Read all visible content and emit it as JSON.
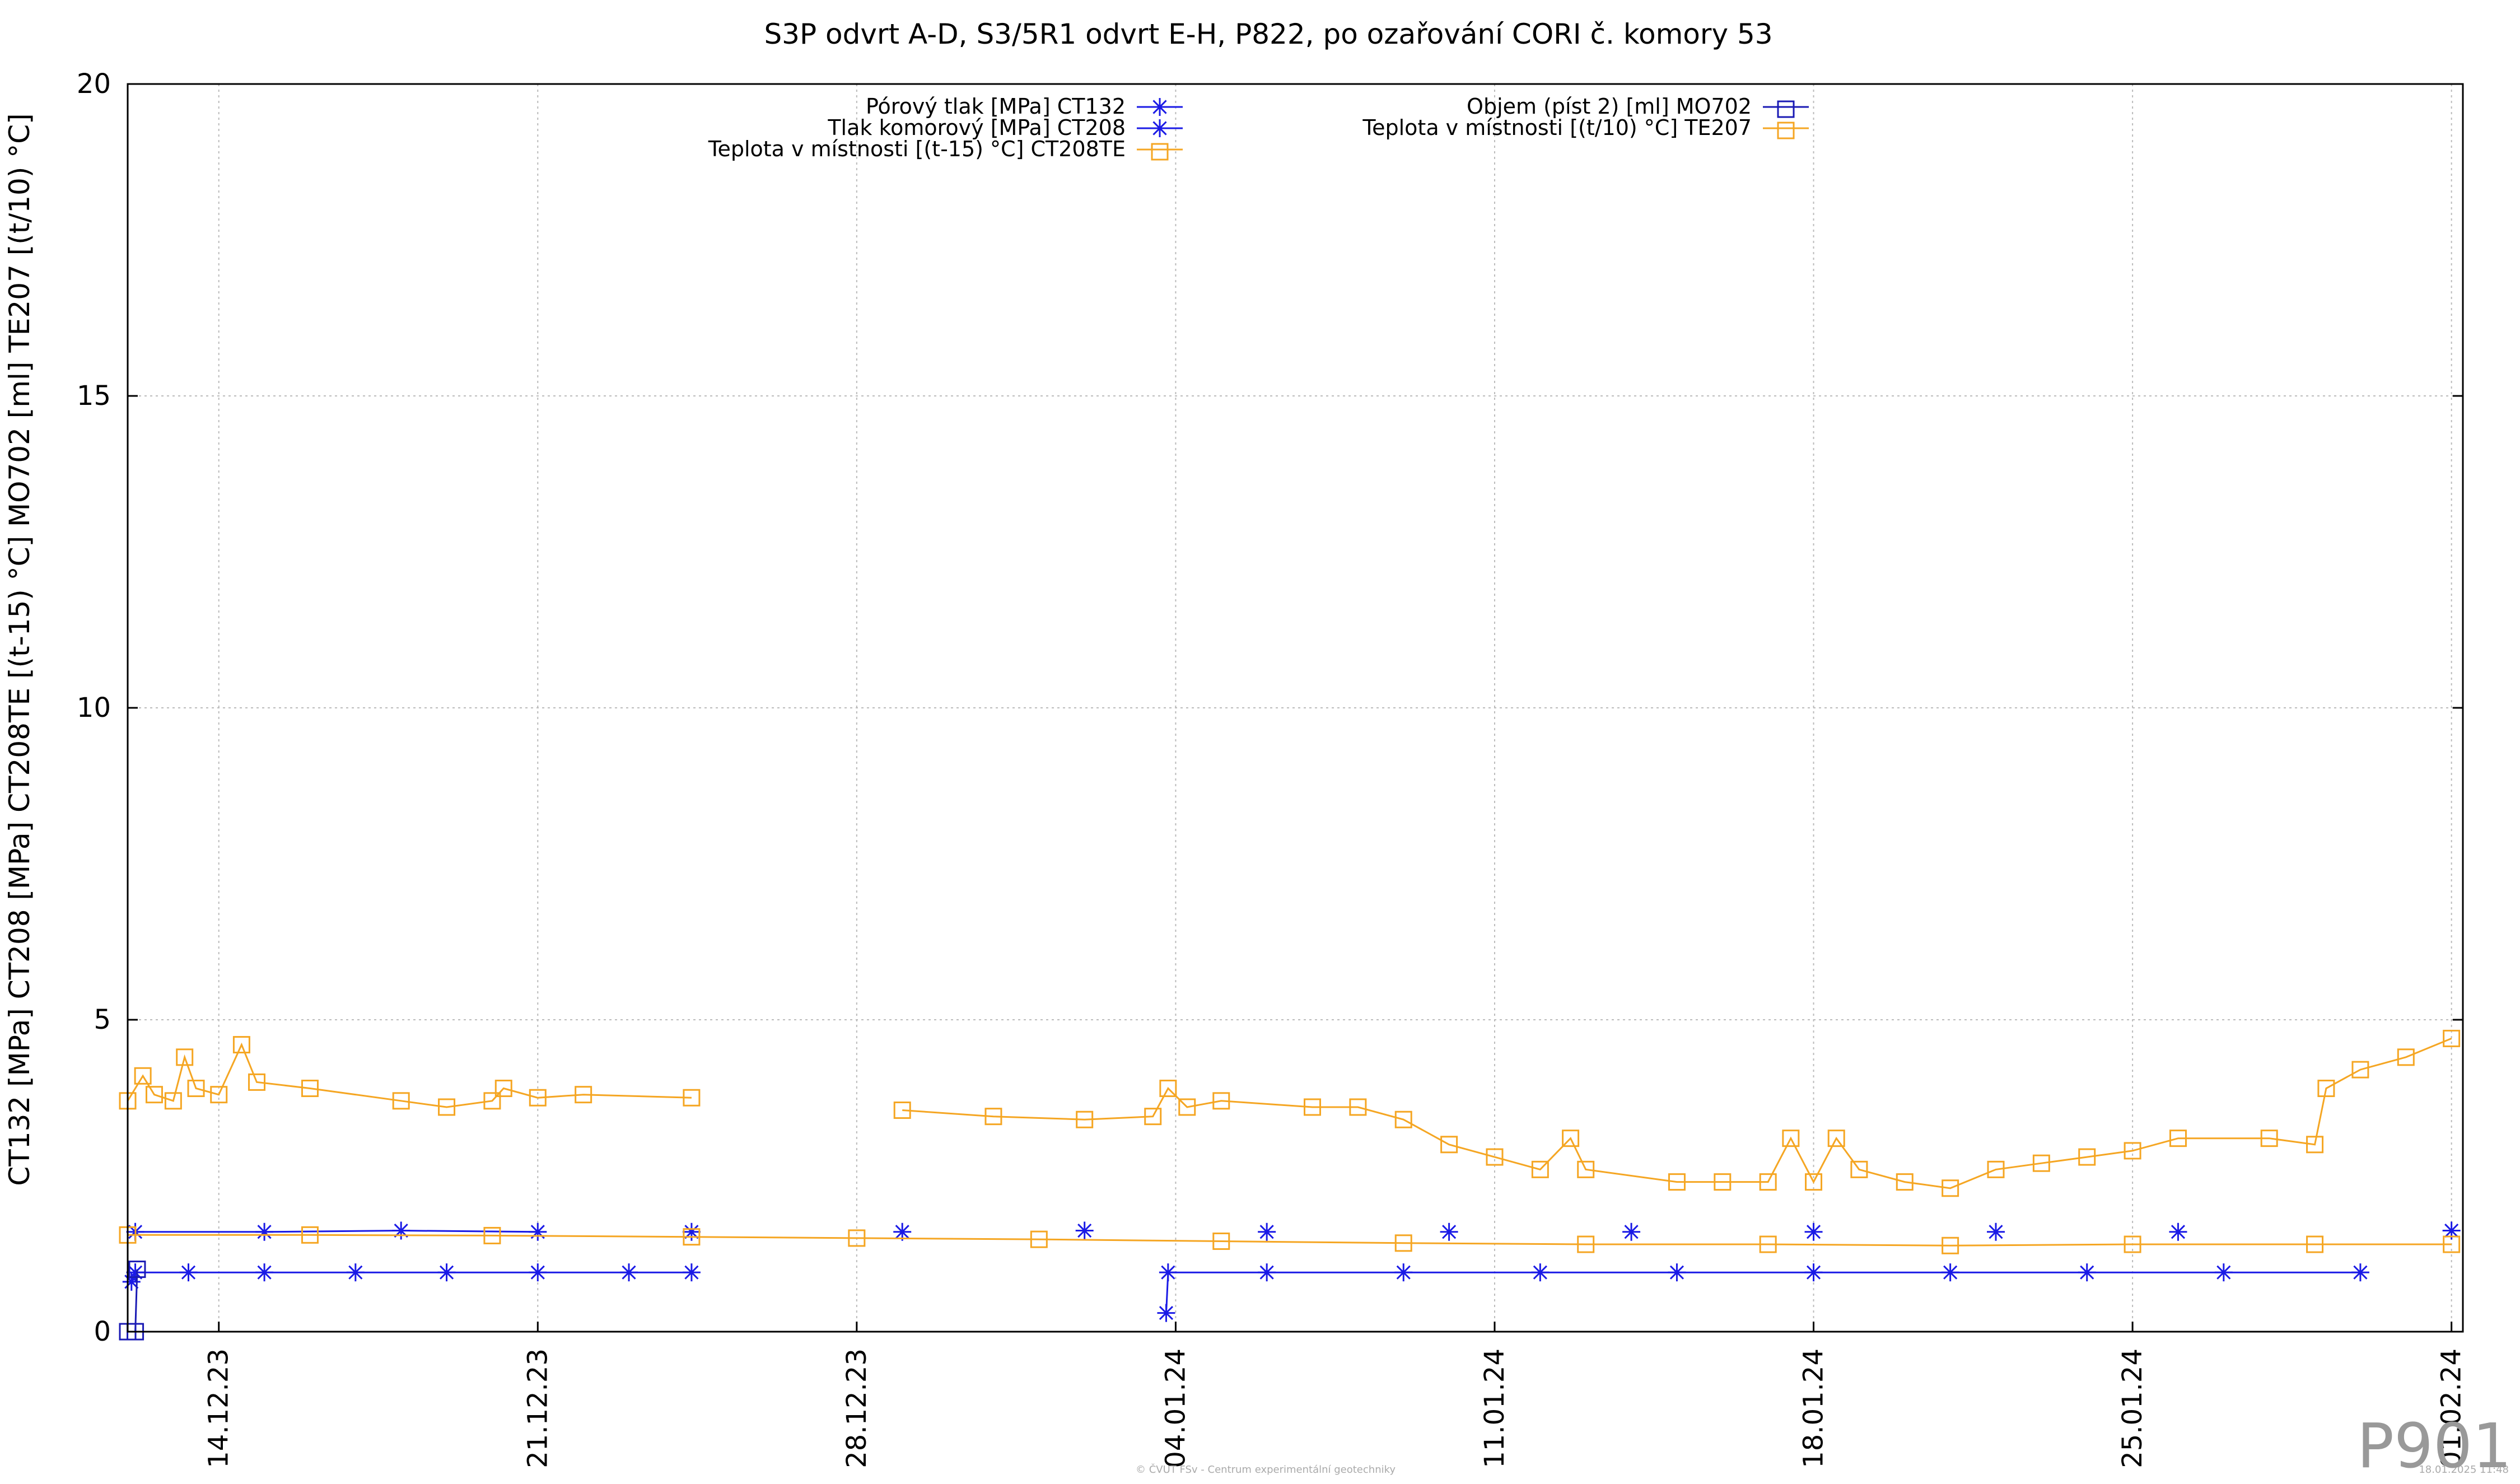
{
  "chart_data": {
    "type": "line",
    "title": "S3P odvrt A-D, S3/5R1 odvrt E-H, P822, po ozařování CORI č. komory 53",
    "ylabel": "CT132 [MPa] CT208 [MPa] CT208TE [(t-15) °C] MO702 [ml] TE207 [(t/10) °C]",
    "xlabel": "",
    "ylim": [
      0,
      20
    ],
    "yticks": [
      0,
      5,
      10,
      15,
      20
    ],
    "xrange": [
      "2023-12-12",
      "2024-02-01"
    ],
    "xticks": [
      {
        "date": "2023-12-14",
        "label": "14.12.23"
      },
      {
        "date": "2023-12-21",
        "label": "21.12.23"
      },
      {
        "date": "2023-12-28",
        "label": "28.12.23"
      },
      {
        "date": "2024-01-04",
        "label": "04.01.24"
      },
      {
        "date": "2024-01-11",
        "label": "11.01.24"
      },
      {
        "date": "2024-01-18",
        "label": "18.01.24"
      },
      {
        "date": "2024-01-25",
        "label": "25.01.24"
      },
      {
        "date": "2024-02-01",
        "label": "01.02.24"
      }
    ],
    "grid": true,
    "legend_position": "top",
    "series": [
      {
        "name": "Pórový tlak [MPa] CT132",
        "color": "#1a1ae6",
        "marker": "asterisk",
        "points": [
          [
            "2023-12-12T02:00",
            0.8
          ],
          [
            "2023-12-12T04:00",
            0.95
          ],
          [
            "2023-12-13T08:00",
            0.95
          ],
          [
            "2023-12-15T00:00",
            0.95
          ],
          [
            "2023-12-17T00:00",
            0.95
          ],
          [
            "2023-12-19T00:00",
            0.95
          ],
          [
            "2023-12-21T00:00",
            0.95
          ],
          [
            "2023-12-23T00:00",
            0.95
          ],
          [
            "2023-12-24T09:00",
            0.95
          ],
          [
            "2024-01-03T19:00",
            0.3
          ],
          [
            "2024-01-03T20:00",
            0.95
          ],
          [
            "2024-01-06T00:00",
            0.95
          ],
          [
            "2024-01-09T00:00",
            0.95
          ],
          [
            "2024-01-12T00:00",
            0.95
          ],
          [
            "2024-01-15T00:00",
            0.95
          ],
          [
            "2024-01-18T00:00",
            0.95
          ],
          [
            "2024-01-21T00:00",
            0.95
          ],
          [
            "2024-01-24T00:00",
            0.95
          ],
          [
            "2024-01-27T00:00",
            0.95
          ],
          [
            "2024-01-30T00:00",
            0.95
          ]
        ]
      },
      {
        "name": "Tlak komorový [MPa] CT208",
        "color": "#1a1ae6",
        "marker": "asterisk",
        "points": [
          [
            "2023-12-12T04:00",
            1.6
          ],
          [
            "2023-12-15T00:00",
            1.6
          ],
          [
            "2023-12-18T00:00",
            1.62
          ],
          [
            "2023-12-21T00:00",
            1.6
          ],
          [
            "2023-12-24T09:00",
            1.6
          ],
          [
            "2023-12-29T00:00",
            1.6
          ],
          [
            "2024-01-02T00:00",
            1.62
          ],
          [
            "2024-01-06T00:00",
            1.6
          ],
          [
            "2024-01-10T00:00",
            1.6
          ],
          [
            "2024-01-14T00:00",
            1.6
          ],
          [
            "2024-01-18T00:00",
            1.6
          ],
          [
            "2024-01-22T00:00",
            1.6
          ],
          [
            "2024-01-26T00:00",
            1.6
          ],
          [
            "2024-02-01T00:00",
            1.62
          ]
        ]
      },
      {
        "name": "Teplota v místnosti [(t-15) °C] CT208TE",
        "color": "#f5a623",
        "marker": "square",
        "points": [
          [
            "2023-12-12T00:00",
            1.55
          ],
          [
            "2023-12-16T00:00",
            1.55
          ],
          [
            "2023-12-20T00:00",
            1.54
          ],
          [
            "2023-12-24T09:00",
            1.52
          ],
          [
            "2023-12-28T00:00",
            1.5
          ],
          [
            "2024-01-01T00:00",
            1.48
          ],
          [
            "2024-01-05T00:00",
            1.45
          ],
          [
            "2024-01-09T00:00",
            1.42
          ],
          [
            "2024-01-13T00:00",
            1.4
          ],
          [
            "2024-01-17T00:00",
            1.4
          ],
          [
            "2024-01-21T00:00",
            1.38
          ],
          [
            "2024-01-25T00:00",
            1.4
          ],
          [
            "2024-01-29T00:00",
            1.4
          ],
          [
            "2024-02-01T00:00",
            1.4
          ]
        ]
      },
      {
        "name": "Objem (píst 2) [ml] MO702",
        "color": "#1a1ab4",
        "marker": "square",
        "points": [
          [
            "2023-12-12T00:00",
            0.0
          ],
          [
            "2023-12-12T04:00",
            0.0
          ],
          [
            "2023-12-12T05:00",
            1.0
          ]
        ]
      },
      {
        "name": "Teplota v místnosti [(t/10) °C] TE207",
        "color": "#f5a623",
        "marker": "square",
        "points": [
          [
            "2023-12-12T00:00",
            3.7
          ],
          [
            "2023-12-12T08:00",
            4.1
          ],
          [
            "2023-12-12T14:00",
            3.8
          ],
          [
            "2023-12-13T00:00",
            3.7
          ],
          [
            "2023-12-13T06:00",
            4.4
          ],
          [
            "2023-12-13T12:00",
            3.9
          ],
          [
            "2023-12-14T00:00",
            3.8
          ],
          [
            "2023-12-14T12:00",
            4.6
          ],
          [
            "2023-12-14T20:00",
            4.0
          ],
          [
            "2023-12-16T00:00",
            3.9
          ],
          [
            "2023-12-18T00:00",
            3.7
          ],
          [
            "2023-12-19T00:00",
            3.6
          ],
          [
            "2023-12-20T00:00",
            3.7
          ],
          [
            "2023-12-20T06:00",
            3.9
          ],
          [
            "2023-12-21T00:00",
            3.75
          ],
          [
            "2023-12-22T00:00",
            3.8
          ],
          [
            "2023-12-24T09:00",
            3.75
          ],
          [
            "2023-12-29T00:00",
            3.55
          ],
          [
            "2023-12-31T00:00",
            3.45
          ],
          [
            "2024-01-02T00:00",
            3.4
          ],
          [
            "2024-01-03T12:00",
            3.45
          ],
          [
            "2024-01-03T20:00",
            3.9
          ],
          [
            "2024-01-04T06:00",
            3.6
          ],
          [
            "2024-01-05T00:00",
            3.7
          ],
          [
            "2024-01-07T00:00",
            3.6
          ],
          [
            "2024-01-08T00:00",
            3.6
          ],
          [
            "2024-01-09T00:00",
            3.4
          ],
          [
            "2024-01-10T00:00",
            3.0
          ],
          [
            "2024-01-11T00:00",
            2.8
          ],
          [
            "2024-01-12T00:00",
            2.6
          ],
          [
            "2024-01-12T16:00",
            3.1
          ],
          [
            "2024-01-13T00:00",
            2.6
          ],
          [
            "2024-01-15T00:00",
            2.4
          ],
          [
            "2024-01-16T00:00",
            2.4
          ],
          [
            "2024-01-17T00:00",
            2.4
          ],
          [
            "2024-01-17T12:00",
            3.1
          ],
          [
            "2024-01-18T00:00",
            2.4
          ],
          [
            "2024-01-18T12:00",
            3.1
          ],
          [
            "2024-01-19T00:00",
            2.6
          ],
          [
            "2024-01-20T00:00",
            2.4
          ],
          [
            "2024-01-21T00:00",
            2.3
          ],
          [
            "2024-01-22T00:00",
            2.6
          ],
          [
            "2024-01-23T00:00",
            2.7
          ],
          [
            "2024-01-24T00:00",
            2.8
          ],
          [
            "2024-01-25T00:00",
            2.9
          ],
          [
            "2024-01-26T00:00",
            3.1
          ],
          [
            "2024-01-28T00:00",
            3.1
          ],
          [
            "2024-01-29T00:00",
            3.0
          ],
          [
            "2024-01-29T06:00",
            3.9
          ],
          [
            "2024-01-30T00:00",
            4.2
          ],
          [
            "2024-01-31T00:00",
            4.4
          ],
          [
            "2024-02-01T00:00",
            4.7
          ]
        ]
      }
    ]
  },
  "footer": {
    "center": "© ČVUT FSv - Centrum experimentální geotechniky",
    "right": "18.01.2025 11:48"
  },
  "stamp": "P901"
}
